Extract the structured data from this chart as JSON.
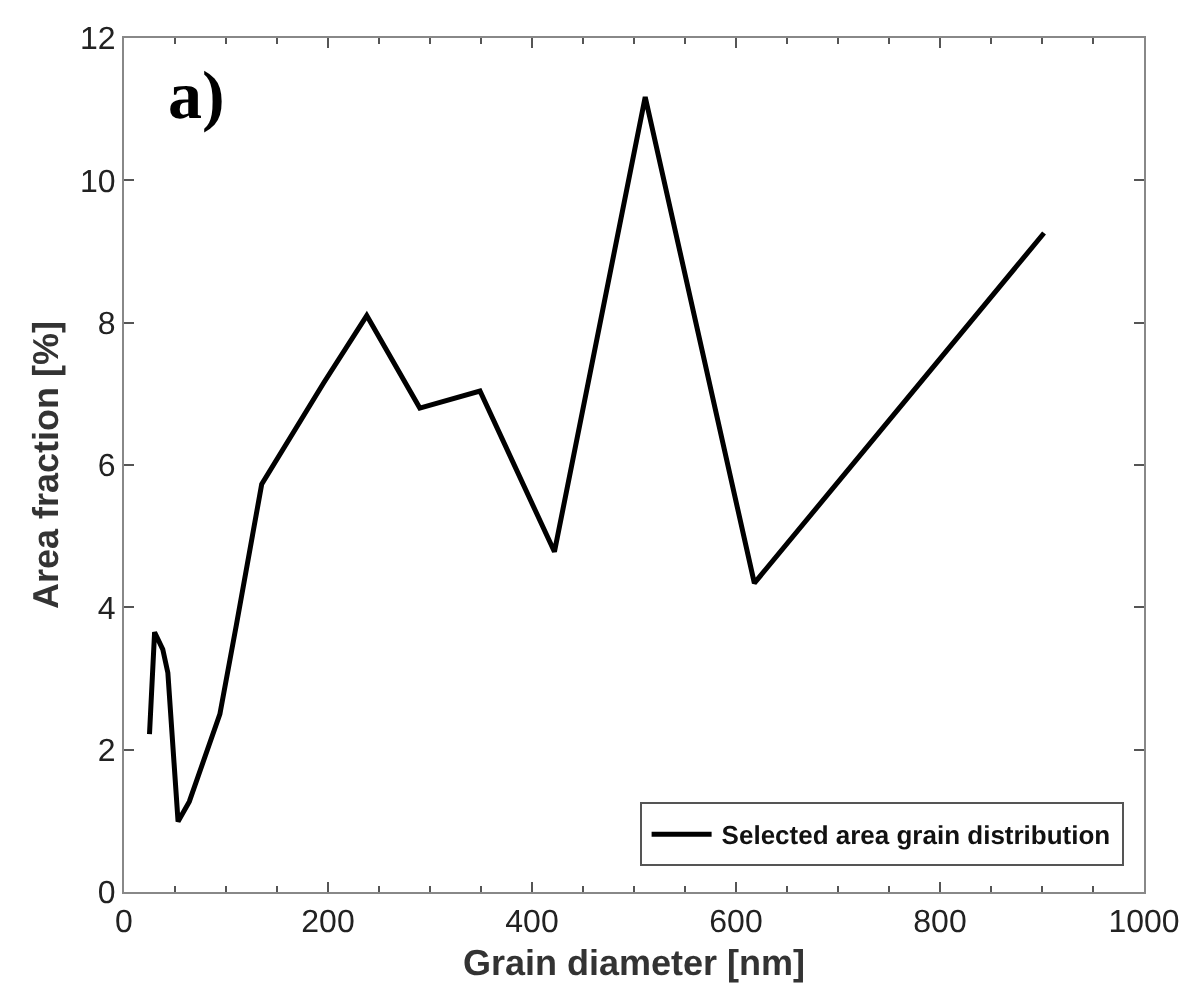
{
  "chart_data": {
    "type": "line",
    "xlabel": "Grain diameter [nm]",
    "ylabel": "Area fraction [%]",
    "annotations": [
      "a)"
    ],
    "series": [
      {
        "name": "Selected area grain distribution",
        "color": "#000000",
        "x": [
          25,
          30,
          38,
          43,
          53,
          64,
          94,
          110,
          135,
          196,
          238,
          290,
          349,
          422,
          511,
          618,
          902
        ],
        "values": [
          2.22,
          3.65,
          3.41,
          3.08,
          0.99,
          1.27,
          2.5,
          3.74,
          5.73,
          7.16,
          8.1,
          6.8,
          7.04,
          4.78,
          11.17,
          4.34,
          9.26
        ]
      }
    ],
    "xlim": [
      0,
      1000
    ],
    "xticks": [
      0,
      200,
      400,
      600,
      800,
      1000
    ],
    "ylim": [
      0,
      12
    ],
    "yticks": [
      0,
      2,
      4,
      6,
      8,
      10,
      12
    ],
    "legend": "bottom right",
    "marker": "none",
    "line_style": "solid"
  }
}
